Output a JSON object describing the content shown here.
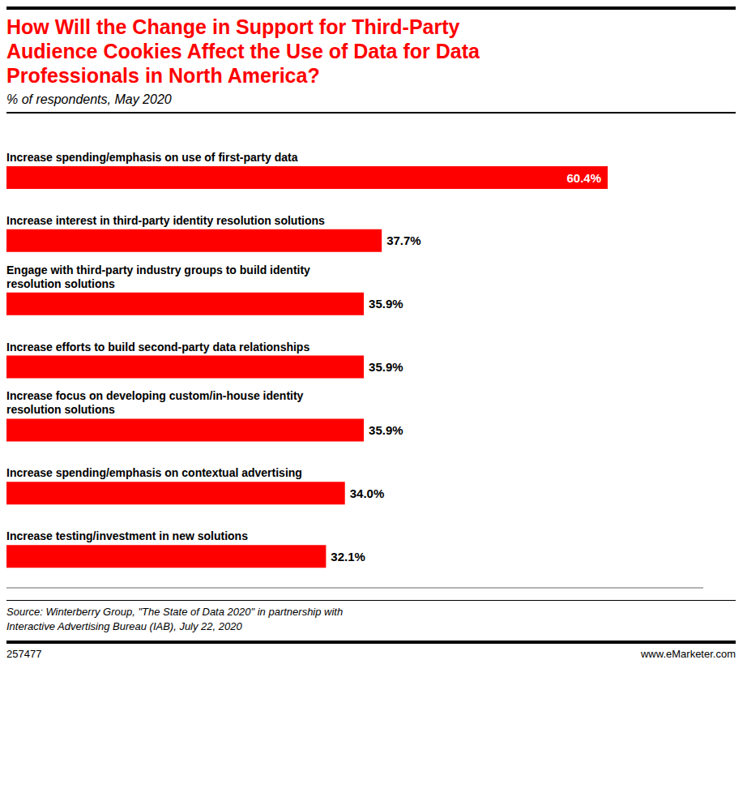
{
  "chart_data": {
    "type": "bar",
    "orientation": "horizontal",
    "title": "How Will the Change in Support for Third-Party\nAudience Cookies Affect the Use of Data for Data\nProfessionals in North America?",
    "subtitle": "% of respondents, May 2020",
    "categories": [
      "Increase spending/emphasis on use of first-party data",
      "Increase interest in third-party identity resolution solutions",
      "Engage with third-party industry groups to build identity\nresolution solutions",
      "Increase efforts to build second-party data relationships",
      "Increase focus on developing custom/in-house identity\nresolution solutions",
      "Increase spending/emphasis on contextual advertising",
      "Increase testing/investment in new solutions"
    ],
    "values": [
      60.4,
      37.7,
      35.9,
      35.9,
      35.9,
      34.0,
      32.1
    ],
    "value_labels": [
      "60.4%",
      "37.7%",
      "35.9%",
      "35.9%",
      "35.9%",
      "34.0%",
      "32.1%"
    ],
    "data_labels": true,
    "color": "#ff0000",
    "xlim": [
      0,
      70
    ],
    "tick_labels": false,
    "grid": false,
    "annotations": [
      "Source: Winterberry Group, \"The State of Data 2020\" in partnership with\nInteractive Advertising Bureau (IAB), July 22, 2020",
      "257477",
      "www.eMarketer.com"
    ]
  }
}
